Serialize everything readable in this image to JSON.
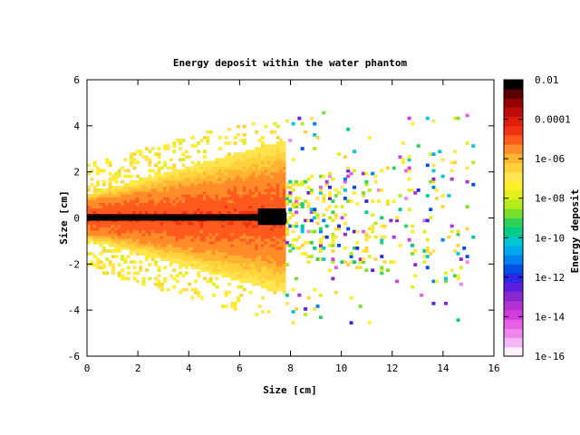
{
  "chart_data": {
    "type": "heatmap",
    "title": "Energy deposit within the water phantom",
    "xlabel": "Size [cm]",
    "ylabel": "Size [cm]",
    "colorbar_label": "Energy deposit",
    "xlim": [
      0,
      16
    ],
    "ylim": [
      -6,
      6
    ],
    "x_ticks": [
      "0",
      "2",
      "4",
      "6",
      "8",
      "10",
      "12",
      "14",
      "16"
    ],
    "y_ticks": [
      "6",
      "4",
      "2",
      "0",
      "-2",
      "-4",
      "-6"
    ],
    "colorbar_scale": "log",
    "colorbar_range": [
      1e-16,
      0.01
    ],
    "colorbar_ticks": [
      "0.01",
      "0.0001",
      "1e-06",
      "1e-08",
      "1e-10",
      "1e-12",
      "1e-14",
      "1e-16"
    ],
    "colormap": [
      "#fff0ff",
      "#f4b8f4",
      "#ee86ee",
      "#e65ee6",
      "#d23cdc",
      "#b432d2",
      "#8c28d2",
      "#5a1edc",
      "#2828e6",
      "#0050e6",
      "#0082f0",
      "#00aaf0",
      "#00c8d2",
      "#00cc88",
      "#2ed25a",
      "#78e02c",
      "#b4ec1e",
      "#e0f01e",
      "#ffee28",
      "#ffe650",
      "#ffd23c",
      "#ffb432",
      "#ff8c28",
      "#ff5a1e",
      "#f03214",
      "#dc1e0a",
      "#be0a0a",
      "#960000",
      "#5a0000",
      "#000000"
    ],
    "description_regions": [
      {
        "region": "beam axis",
        "x": [
          0,
          7.8
        ],
        "y": 0,
        "value": 0.01
      },
      {
        "region": "core",
        "x": [
          0,
          7.5
        ],
        "half_width_cm": [
          0.3,
          1.6
        ],
        "value": 1e-05
      },
      {
        "region": "envelope",
        "x": [
          0,
          7.5
        ],
        "half_width_cm": [
          0.8,
          3.2
        ],
        "value": 1e-06
      },
      {
        "region": "scatter tail",
        "x": [
          7.5,
          15
        ],
        "half_width_cm": [
          2,
          4
        ],
        "value": 1e-09
      }
    ]
  }
}
